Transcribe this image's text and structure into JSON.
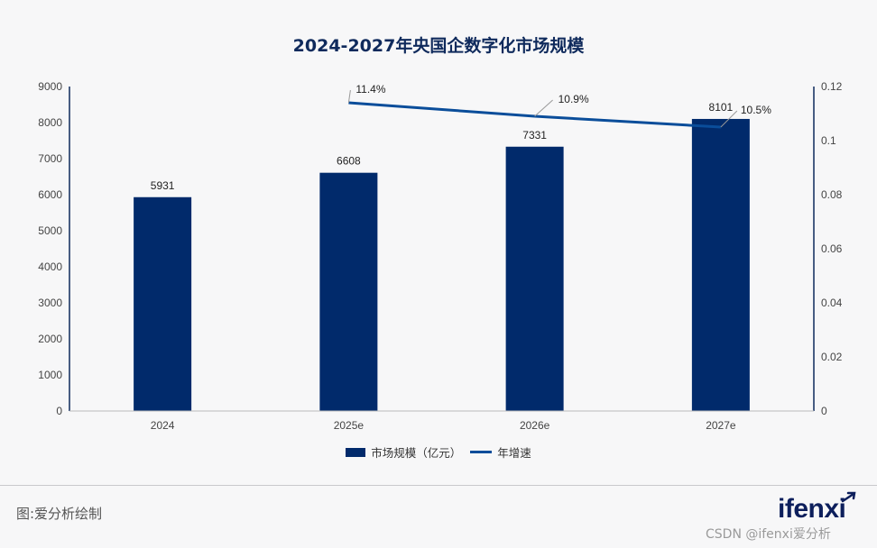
{
  "chart_data": {
    "type": "bar",
    "title": "2024-2027年央国企数字化市场规模",
    "categories": [
      "2024",
      "2025e",
      "2026e",
      "2027e"
    ],
    "series": [
      {
        "name": "市场规模（亿元）",
        "type": "bar",
        "axis": "left",
        "color": "#012a6b",
        "values": [
          5931,
          6608,
          7331,
          8101
        ],
        "labels": [
          "5931",
          "6608",
          "7331",
          "8101"
        ]
      },
      {
        "name": "年增速",
        "type": "line",
        "axis": "right",
        "color": "#0a4d9a",
        "values": [
          null,
          0.114,
          0.109,
          0.105
        ],
        "labels": [
          "",
          "11.4%",
          "10.9%",
          "10.5%"
        ]
      }
    ],
    "y_left": {
      "min": 0,
      "max": 9000,
      "ticks": [
        "0",
        "1000",
        "2000",
        "3000",
        "4000",
        "5000",
        "6000",
        "7000",
        "8000",
        "9000"
      ]
    },
    "y_right": {
      "min": 0,
      "max": 0.12,
      "ticks": [
        "0",
        "0.02",
        "0.04",
        "0.06",
        "0.08",
        "0.1",
        "0.12"
      ]
    },
    "legend_position": "bottom-center",
    "grid": false
  },
  "source": "图:爱分析绘制",
  "logo_text": "ifenxi",
  "watermark": "CSDN @ifenxi爱分析"
}
